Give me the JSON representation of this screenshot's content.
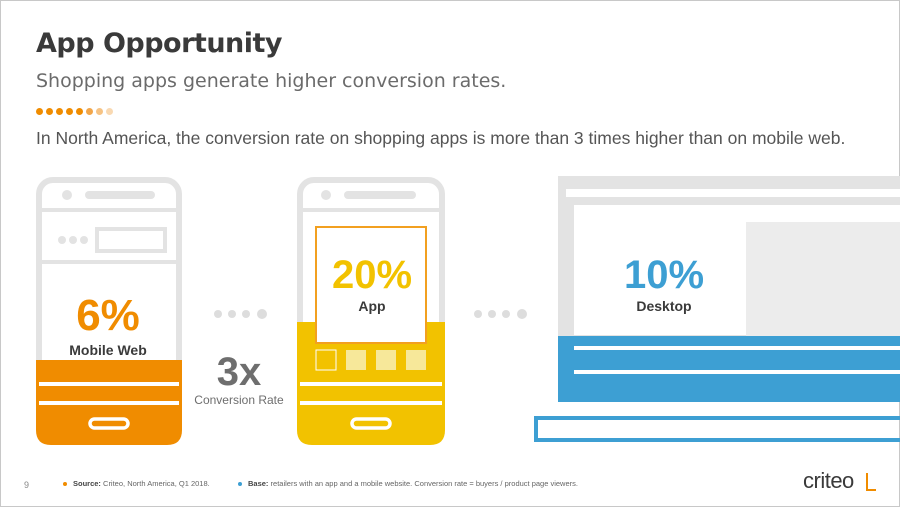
{
  "slide": {
    "title": "App Opportunity",
    "subtitle": "Shopping apps generate higher conversion rates.",
    "statement": "In North America, the conversion rate on shopping apps is more than 3 times higher than on mobile web.",
    "page_number": "9",
    "logo_text": "criteo"
  },
  "footer": {
    "source_label": "Source:",
    "source_text": " Criteo, North America, Q1 2018.",
    "base_label": "Base:",
    "base_text": " retailers with an app and a mobile website. Conversion rate = buyers / product page viewers."
  },
  "comparison": {
    "multiplier": "3x",
    "multiplier_label": "Conversion Rate"
  },
  "colors": {
    "mobile": "#f08c00",
    "app": "#f2c200",
    "desktop": "#3d9fd3",
    "device_gray": "#e3e3e3",
    "text_dark": "#3a3a3a"
  },
  "chart_data": {
    "type": "bar",
    "categories": [
      "Mobile Web",
      "App",
      "Desktop"
    ],
    "values": [
      6,
      20,
      10
    ],
    "value_labels": [
      "6%",
      "20%",
      "10%"
    ],
    "unit": "%"
  }
}
